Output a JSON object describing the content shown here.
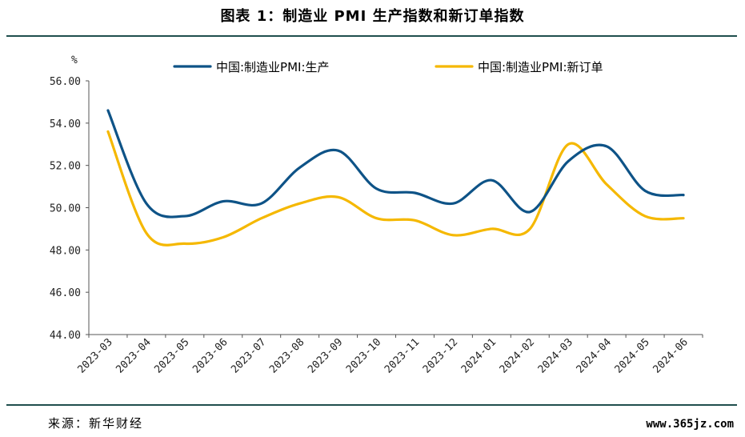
{
  "title": "图表 1：制造业 PMI 生产指数和新订单指数",
  "source": "来源：新华财经",
  "watermark": "www.365jz.com",
  "chart_data": {
    "type": "line",
    "ylabel": "%",
    "ylim": [
      44,
      56
    ],
    "y_ticks": [
      "56.00",
      "54.00",
      "52.00",
      "50.00",
      "48.00",
      "46.00",
      "44.00"
    ],
    "categories": [
      "2023-03",
      "2023-04",
      "2023-05",
      "2023-06",
      "2023-07",
      "2023-08",
      "2023-09",
      "2023-10",
      "2023-11",
      "2023-12",
      "2024-01",
      "2024-02",
      "2024-03",
      "2024-04",
      "2024-05",
      "2024-06"
    ],
    "legend_position": "top",
    "series": [
      {
        "name": "中国:制造业PMI:生产",
        "color": "#0e5387",
        "values": [
          54.6,
          50.2,
          49.6,
          50.3,
          50.2,
          51.9,
          52.7,
          50.9,
          50.7,
          50.2,
          51.3,
          49.8,
          52.2,
          52.9,
          50.8,
          50.6
        ]
      },
      {
        "name": "中国:制造业PMI:新订单",
        "color": "#f5b800",
        "values": [
          53.6,
          48.8,
          48.3,
          48.6,
          49.5,
          50.2,
          50.5,
          49.5,
          49.4,
          48.7,
          49.0,
          49.0,
          53.0,
          51.1,
          49.6,
          49.5
        ]
      }
    ]
  }
}
